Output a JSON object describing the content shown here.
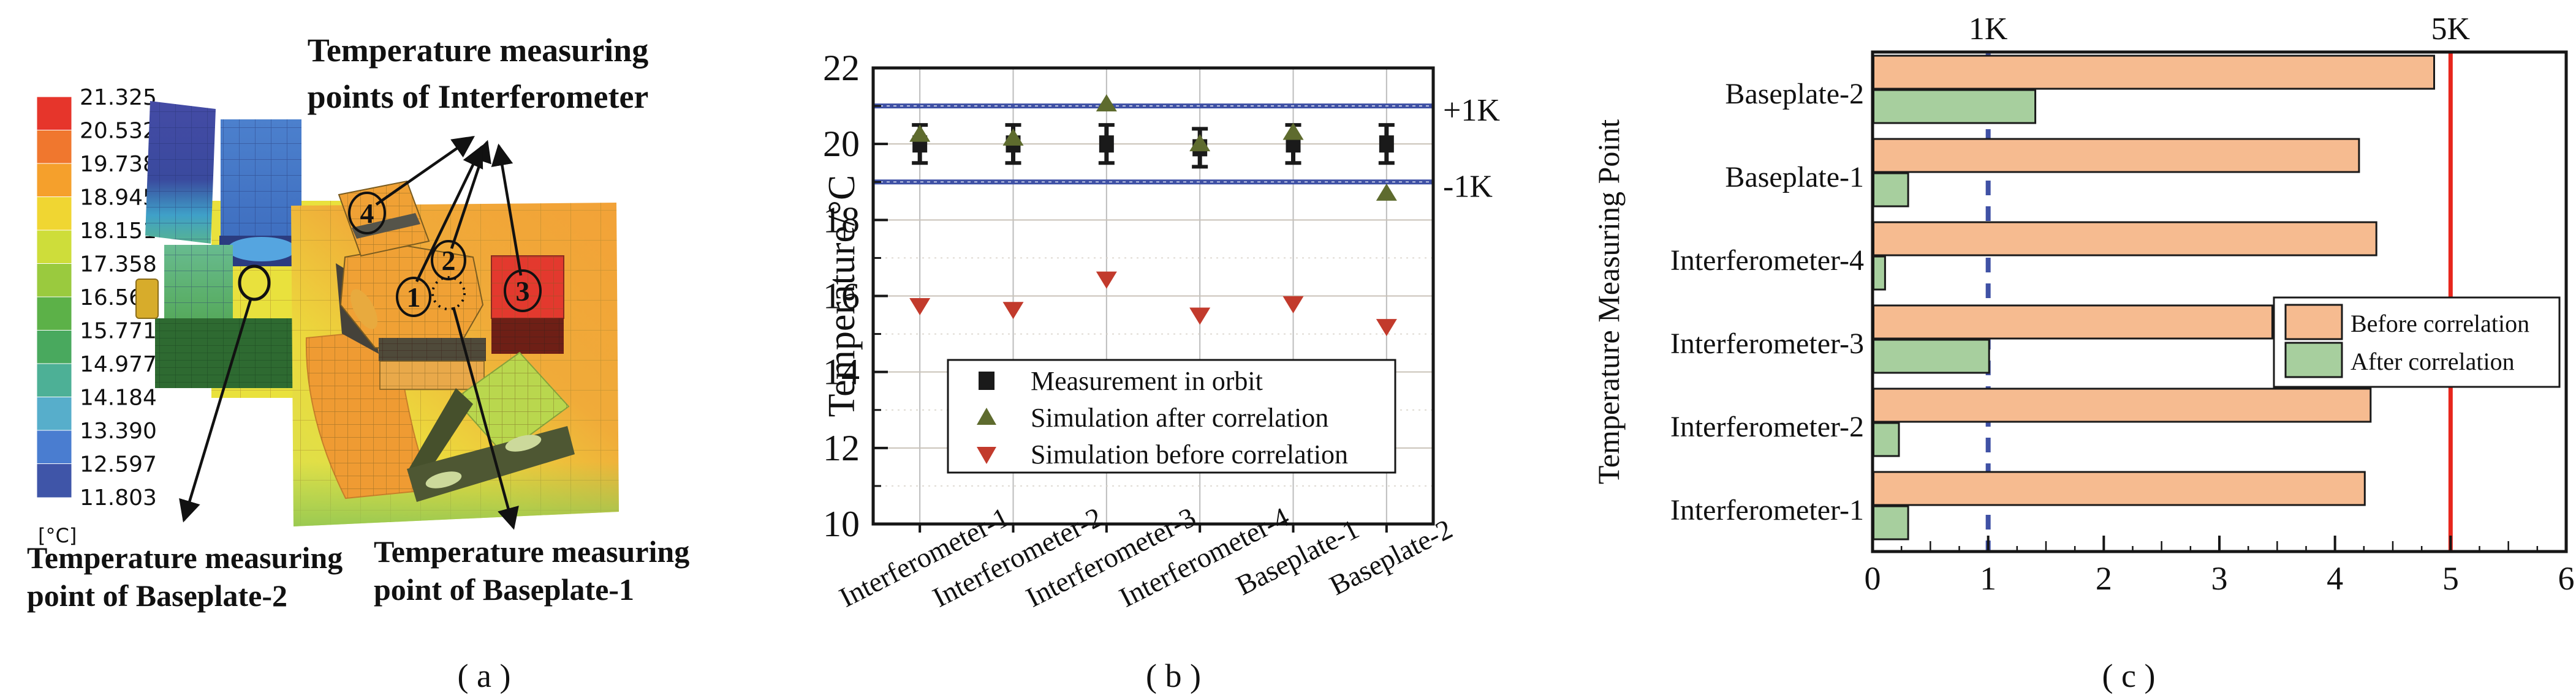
{
  "figure_captions": {
    "a": "( a )",
    "b": "( b )",
    "c": "( c )"
  },
  "colors": {
    "reference_blue": "#3f51a5",
    "reference_red": "#e7261c",
    "before_bar_peach": "#f6bb90",
    "after_bar_green": "#a7cf9e",
    "after_triangle_olive": "#5e6b2e",
    "before_triangle_red": "#c23a2c",
    "measurement_black": "#1a1a1a"
  },
  "panel_a": {
    "colorbar": {
      "unit": "[°C]",
      "ticks": [
        "21.325",
        "20.532",
        "19.738",
        "18.945",
        "18.151",
        "17.358",
        "16.564",
        "15.771",
        "14.977",
        "14.184",
        "13.390",
        "12.597",
        "11.803"
      ],
      "band_colors": [
        "#e6352b",
        "#f0772e",
        "#f5a02c",
        "#f0d632",
        "#cedd3a",
        "#9aca3e",
        "#5cb148",
        "#49a95e",
        "#4db096",
        "#57aecb",
        "#4a7dd0",
        "#3f55a8"
      ]
    },
    "labels": {
      "interferometer_line1": "Temperature measuring",
      "interferometer_line2": "points of Interferometer",
      "baseplate2_line1": "Temperature measuring",
      "baseplate2_line2": "point of Baseplate-2",
      "baseplate1_line1": "Temperature measuring",
      "baseplate1_line2": "point of Baseplate-1"
    },
    "point_labels": [
      "1",
      "2",
      "3",
      "4"
    ]
  },
  "chart_data": [
    {
      "id": "panel_b",
      "type": "scatter",
      "title": "",
      "xlabel": "",
      "ylabel": "Temperature/°C",
      "ylim": [
        10,
        22
      ],
      "yticks": [
        10,
        12,
        14,
        16,
        18,
        20,
        22
      ],
      "grid": true,
      "legend_position": "lower-center",
      "categories": [
        "Interferometer-1",
        "Interferometer-2",
        "Interferometer-3",
        "Interferometer-4",
        "Baseplate-1",
        "Baseplate-2"
      ],
      "series": [
        {
          "name": "Measurement in  orbit",
          "marker": "square",
          "color": "#1a1a1a",
          "values": [
            20.0,
            20.0,
            20.0,
            19.9,
            20.0,
            20.0
          ],
          "yerr": [
            0.5,
            0.5,
            0.5,
            0.5,
            0.5,
            0.5
          ]
        },
        {
          "name": "Simulation after  correlation",
          "marker": "triangle-up",
          "color": "#5e6b2e",
          "values": [
            20.25,
            20.15,
            21.05,
            20.0,
            20.3,
            18.7
          ]
        },
        {
          "name": "Simulation before  correlation",
          "marker": "triangle-down",
          "color": "#c23a2c",
          "values": [
            15.75,
            15.65,
            16.45,
            15.5,
            15.8,
            15.2
          ]
        }
      ],
      "reference_lines": [
        {
          "y": 21,
          "label": "+1K",
          "color": "#3f51a5"
        },
        {
          "y": 19,
          "label": "-1K",
          "color": "#3f51a5"
        }
      ]
    },
    {
      "id": "panel_c",
      "type": "bar-horizontal",
      "title": "",
      "axis_label": "Temperature Measuring Point",
      "xlim": [
        0,
        6
      ],
      "xticks": [
        0,
        1,
        2,
        3,
        4,
        5,
        6
      ],
      "legend_position": "middle-right",
      "categories_top_to_bottom": [
        "Baseplate-2",
        "Baseplate-1",
        "Interferometer-4",
        "Interferometer-3",
        "Interferometer-2",
        "Interferometer-1"
      ],
      "series": [
        {
          "name": "Before correlation",
          "color": "#f6bb90",
          "values": [
            4.85,
            4.2,
            4.35,
            3.45,
            4.3,
            4.25
          ]
        },
        {
          "name": "After correlation",
          "color": "#a7cf9e",
          "values": [
            1.4,
            0.3,
            0.1,
            1.0,
            0.22,
            0.3
          ]
        }
      ],
      "reference_lines": [
        {
          "x": 1,
          "label": "1K",
          "style": "dashed",
          "color": "#3f51a5"
        },
        {
          "x": 5,
          "label": "5K",
          "style": "solid",
          "color": "#e7261c"
        }
      ]
    }
  ]
}
